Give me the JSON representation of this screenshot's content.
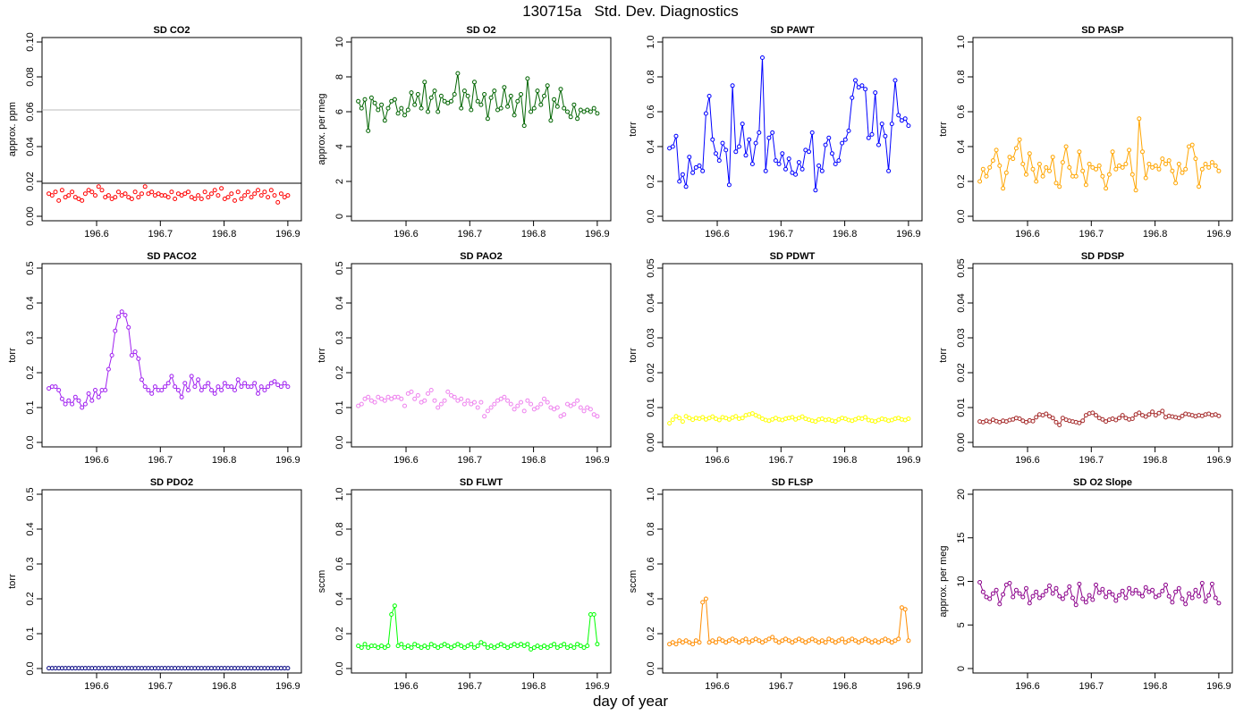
{
  "title": "130715a   Std. Dev. Diagnostics",
  "xlabel": "day of year",
  "colors": {
    "red": "#ff0000",
    "darkgreen": "#006400",
    "blue": "#0000ff",
    "orange": "#ffa500",
    "purple": "#a020f0",
    "violet": "#ee82ee",
    "yellow": "#ffff00",
    "brown": "#a52a2a",
    "navy": "#000080",
    "green": "#00ff00",
    "darkorange": "#ff8c00",
    "darkmagenta": "#8b008b"
  },
  "chart_data": [
    {
      "type": "scatter",
      "title": "SD CO2",
      "xlabel": "",
      "ylabel": "approx. ppm",
      "xlim": [
        196.52,
        196.91
      ],
      "ylim": [
        0,
        0.1
      ],
      "xticks": [
        "196.6",
        "196.7",
        "196.8",
        "196.9"
      ],
      "yticks": [
        "0.00",
        "0.02",
        "0.04",
        "0.06",
        "0.08",
        "0.10"
      ],
      "color": "#ff0000",
      "connected": false,
      "hlines": [
        {
          "y": 0.019,
          "color": "#000000"
        },
        {
          "y": 0.061,
          "color": "#bbbbbb"
        }
      ],
      "values": [
        0.013,
        0.012,
        0.014,
        0.009,
        0.015,
        0.011,
        0.012,
        0.014,
        0.011,
        0.01,
        0.009,
        0.013,
        0.015,
        0.014,
        0.012,
        0.017,
        0.015,
        0.011,
        0.012,
        0.01,
        0.011,
        0.014,
        0.012,
        0.013,
        0.011,
        0.01,
        0.014,
        0.011,
        0.013,
        0.017,
        0.013,
        0.014,
        0.012,
        0.013,
        0.012,
        0.012,
        0.011,
        0.014,
        0.01,
        0.013,
        0.012,
        0.013,
        0.014,
        0.011,
        0.01,
        0.012,
        0.01,
        0.014,
        0.011,
        0.013,
        0.015,
        0.012,
        0.016,
        0.01,
        0.011,
        0.013,
        0.009,
        0.014,
        0.01,
        0.012,
        0.014,
        0.011,
        0.013,
        0.015,
        0.012,
        0.014,
        0.011,
        0.015,
        0.012,
        0.008,
        0.013,
        0.011,
        0.012
      ]
    },
    {
      "type": "line",
      "title": "SD O2",
      "xlabel": "",
      "ylabel": "approx. per meg",
      "xlim": [
        196.52,
        196.91
      ],
      "ylim": [
        0,
        10
      ],
      "xticks": [
        "196.6",
        "196.7",
        "196.8",
        "196.9"
      ],
      "yticks": [
        "0",
        "2",
        "4",
        "6",
        "8",
        "10"
      ],
      "color": "#006400",
      "connected": true,
      "values": [
        6.6,
        6.2,
        6.7,
        4.9,
        6.8,
        6.5,
        6.1,
        6.4,
        5.5,
        6.2,
        6.6,
        6.7,
        5.9,
        6.2,
        5.8,
        6.1,
        7.1,
        6.4,
        7.0,
        6.2,
        7.7,
        6.0,
        6.8,
        7.2,
        6.0,
        6.9,
        6.6,
        6.5,
        6.6,
        7.0,
        8.2,
        6.2,
        7.2,
        6.9,
        6.1,
        7.7,
        6.6,
        6.4,
        7.0,
        5.6,
        6.8,
        7.2,
        6.1,
        6.2,
        7.4,
        6.3,
        6.9,
        5.8,
        6.6,
        7.0,
        5.2,
        7.9,
        6.0,
        6.2,
        7.2,
        6.4,
        6.9,
        7.5,
        5.5,
        6.7,
        6.3,
        7.3,
        6.2,
        6.0,
        5.7,
        6.4,
        5.6,
        6.1,
        6.0,
        6.1,
        6.0,
        6.2,
        5.9
      ]
    },
    {
      "type": "line",
      "title": "SD PAWT",
      "xlabel": "",
      "ylabel": "torr",
      "xlim": [
        196.52,
        196.91
      ],
      "ylim": [
        0,
        1
      ],
      "xticks": [
        "196.6",
        "196.7",
        "196.8",
        "196.9"
      ],
      "yticks": [
        "0.0",
        "0.2",
        "0.4",
        "0.6",
        "0.8",
        "1.0"
      ],
      "color": "#0000ff",
      "connected": true,
      "values": [
        0.39,
        0.4,
        0.46,
        0.2,
        0.24,
        0.17,
        0.34,
        0.25,
        0.28,
        0.29,
        0.26,
        0.59,
        0.69,
        0.44,
        0.36,
        0.32,
        0.42,
        0.38,
        0.18,
        0.75,
        0.37,
        0.4,
        0.53,
        0.35,
        0.44,
        0.3,
        0.42,
        0.48,
        0.91,
        0.26,
        0.45,
        0.48,
        0.32,
        0.3,
        0.36,
        0.27,
        0.33,
        0.25,
        0.24,
        0.31,
        0.27,
        0.38,
        0.37,
        0.48,
        0.15,
        0.29,
        0.26,
        0.41,
        0.45,
        0.36,
        0.3,
        0.32,
        0.42,
        0.44,
        0.49,
        0.68,
        0.78,
        0.74,
        0.75,
        0.73,
        0.45,
        0.47,
        0.71,
        0.41,
        0.53,
        0.46,
        0.26,
        0.53,
        0.78,
        0.58,
        0.55,
        0.56,
        0.52
      ]
    },
    {
      "type": "line",
      "title": "SD PASP",
      "xlabel": "",
      "ylabel": "torr",
      "xlim": [
        196.52,
        196.91
      ],
      "ylim": [
        0,
        1
      ],
      "xticks": [
        "196.6",
        "196.7",
        "196.8",
        "196.9"
      ],
      "yticks": [
        "0.0",
        "0.2",
        "0.4",
        "0.6",
        "0.8",
        "1.0"
      ],
      "color": "#ffa500",
      "connected": true,
      "values": [
        0.2,
        0.27,
        0.23,
        0.28,
        0.32,
        0.38,
        0.29,
        0.16,
        0.25,
        0.34,
        0.33,
        0.39,
        0.44,
        0.3,
        0.24,
        0.36,
        0.27,
        0.2,
        0.3,
        0.23,
        0.28,
        0.26,
        0.34,
        0.19,
        0.17,
        0.31,
        0.4,
        0.28,
        0.23,
        0.23,
        0.37,
        0.26,
        0.18,
        0.3,
        0.28,
        0.27,
        0.29,
        0.23,
        0.16,
        0.24,
        0.37,
        0.27,
        0.29,
        0.28,
        0.3,
        0.38,
        0.24,
        0.15,
        0.56,
        0.37,
        0.22,
        0.3,
        0.28,
        0.29,
        0.27,
        0.33,
        0.3,
        0.32,
        0.26,
        0.19,
        0.3,
        0.25,
        0.27,
        0.4,
        0.41,
        0.33,
        0.17,
        0.27,
        0.3,
        0.28,
        0.31,
        0.29,
        0.26
      ]
    },
    {
      "type": "line",
      "title": "SD PACO2",
      "xlabel": "",
      "ylabel": "torr",
      "xlim": [
        196.52,
        196.91
      ],
      "ylim": [
        0,
        0.5
      ],
      "xticks": [
        "196.6",
        "196.7",
        "196.8",
        "196.9"
      ],
      "yticks": [
        "0.0",
        "0.1",
        "0.2",
        "0.3",
        "0.4",
        "0.5"
      ],
      "color": "#a020f0",
      "connected": true,
      "values": [
        0.155,
        0.16,
        0.16,
        0.15,
        0.125,
        0.11,
        0.12,
        0.11,
        0.13,
        0.12,
        0.1,
        0.11,
        0.14,
        0.12,
        0.15,
        0.13,
        0.15,
        0.15,
        0.21,
        0.25,
        0.32,
        0.36,
        0.375,
        0.365,
        0.33,
        0.25,
        0.26,
        0.24,
        0.18,
        0.16,
        0.15,
        0.14,
        0.16,
        0.15,
        0.15,
        0.16,
        0.17,
        0.19,
        0.16,
        0.15,
        0.13,
        0.17,
        0.15,
        0.19,
        0.16,
        0.18,
        0.15,
        0.16,
        0.17,
        0.15,
        0.14,
        0.16,
        0.15,
        0.17,
        0.16,
        0.16,
        0.15,
        0.18,
        0.16,
        0.17,
        0.16,
        0.16,
        0.17,
        0.14,
        0.16,
        0.15,
        0.16,
        0.17,
        0.175,
        0.165,
        0.16,
        0.17,
        0.16
      ]
    },
    {
      "type": "scatter",
      "title": "SD PAO2",
      "xlabel": "",
      "ylabel": "torr",
      "xlim": [
        196.52,
        196.91
      ],
      "ylim": [
        0,
        0.5
      ],
      "xticks": [
        "196.6",
        "196.7",
        "196.8",
        "196.9"
      ],
      "yticks": [
        "0.0",
        "0.1",
        "0.2",
        "0.3",
        "0.4",
        "0.5"
      ],
      "color": "#ee82ee",
      "connected": false,
      "values": [
        0.105,
        0.11,
        0.125,
        0.13,
        0.12,
        0.115,
        0.13,
        0.125,
        0.12,
        0.13,
        0.125,
        0.13,
        0.13,
        0.125,
        0.105,
        0.14,
        0.145,
        0.125,
        0.135,
        0.115,
        0.12,
        0.14,
        0.15,
        0.12,
        0.1,
        0.11,
        0.12,
        0.145,
        0.135,
        0.13,
        0.12,
        0.125,
        0.11,
        0.12,
        0.11,
        0.115,
        0.1,
        0.115,
        0.075,
        0.09,
        0.1,
        0.11,
        0.12,
        0.125,
        0.13,
        0.12,
        0.11,
        0.095,
        0.105,
        0.115,
        0.09,
        0.12,
        0.11,
        0.095,
        0.1,
        0.11,
        0.125,
        0.115,
        0.1,
        0.095,
        0.1,
        0.075,
        0.08,
        0.11,
        0.105,
        0.11,
        0.12,
        0.1,
        0.09,
        0.1,
        0.095,
        0.08,
        0.075
      ]
    },
    {
      "type": "scatter",
      "title": "SD PDWT",
      "xlabel": "",
      "ylabel": "torr",
      "xlim": [
        196.52,
        196.91
      ],
      "ylim": [
        0,
        0.05
      ],
      "xticks": [
        "196.6",
        "196.7",
        "196.8",
        "196.9"
      ],
      "yticks": [
        "0.00",
        "0.01",
        "0.02",
        "0.03",
        "0.04",
        "0.05"
      ],
      "color": "#ffff00",
      "connected": false,
      "values": [
        0.0055,
        0.0065,
        0.0075,
        0.007,
        0.006,
        0.0075,
        0.007,
        0.0065,
        0.007,
        0.0068,
        0.0072,
        0.0066,
        0.007,
        0.0074,
        0.0068,
        0.0064,
        0.0072,
        0.007,
        0.0066,
        0.0071,
        0.0075,
        0.0068,
        0.007,
        0.0078,
        0.008,
        0.0083,
        0.0078,
        0.0074,
        0.0068,
        0.0064,
        0.0062,
        0.0066,
        0.007,
        0.0066,
        0.0064,
        0.0068,
        0.007,
        0.0072,
        0.0066,
        0.007,
        0.0074,
        0.0068,
        0.0065,
        0.0062,
        0.006,
        0.0066,
        0.0068,
        0.0064,
        0.0066,
        0.0062,
        0.006,
        0.0066,
        0.007,
        0.0068,
        0.0064,
        0.0062,
        0.0066,
        0.007,
        0.0068,
        0.0072,
        0.0064,
        0.0062,
        0.006,
        0.0064,
        0.0068,
        0.0066,
        0.0062,
        0.0064,
        0.0068,
        0.007,
        0.0066,
        0.0064,
        0.0068
      ]
    },
    {
      "type": "line",
      "title": "SD PDSP",
      "xlabel": "",
      "ylabel": "torr",
      "xlim": [
        196.52,
        196.91
      ],
      "ylim": [
        0,
        0.05
      ],
      "xticks": [
        "196.6",
        "196.7",
        "196.8",
        "196.9"
      ],
      "yticks": [
        "0.00",
        "0.01",
        "0.02",
        "0.03",
        "0.04",
        "0.05"
      ],
      "color": "#a52a2a",
      "connected": true,
      "values": [
        0.006,
        0.0058,
        0.0062,
        0.0059,
        0.0065,
        0.0061,
        0.0058,
        0.0062,
        0.006,
        0.0064,
        0.0066,
        0.007,
        0.0068,
        0.0062,
        0.0058,
        0.0063,
        0.0061,
        0.0072,
        0.008,
        0.0078,
        0.0082,
        0.0075,
        0.007,
        0.0058,
        0.005,
        0.007,
        0.0065,
        0.0062,
        0.006,
        0.0058,
        0.0056,
        0.0062,
        0.0078,
        0.0083,
        0.0085,
        0.0078,
        0.007,
        0.0066,
        0.006,
        0.0065,
        0.0068,
        0.0064,
        0.007,
        0.0078,
        0.007,
        0.0066,
        0.0068,
        0.008,
        0.0085,
        0.0078,
        0.0074,
        0.008,
        0.0088,
        0.0078,
        0.0084,
        0.009,
        0.0072,
        0.0076,
        0.0074,
        0.0072,
        0.007,
        0.0076,
        0.0082,
        0.008,
        0.0078,
        0.0075,
        0.0078,
        0.0076,
        0.008,
        0.0082,
        0.0078,
        0.008,
        0.0076
      ]
    },
    {
      "type": "line",
      "title": "SD PDO2",
      "xlabel": "",
      "ylabel": "torr",
      "xlim": [
        196.52,
        196.91
      ],
      "ylim": [
        0,
        0.5
      ],
      "xticks": [
        "196.6",
        "196.7",
        "196.8",
        "196.9"
      ],
      "yticks": [
        "0.0",
        "0.1",
        "0.2",
        "0.3",
        "0.4",
        "0.5"
      ],
      "color": "#000080",
      "connected": true,
      "values": [
        0.001,
        0.001,
        0.001,
        0.001,
        0.001,
        0.001,
        0.001,
        0.001,
        0.001,
        0.001,
        0.001,
        0.001,
        0.001,
        0.001,
        0.001,
        0.001,
        0.001,
        0.001,
        0.001,
        0.001,
        0.001,
        0.001,
        0.001,
        0.001,
        0.001,
        0.001,
        0.001,
        0.001,
        0.001,
        0.001,
        0.001,
        0.001,
        0.001,
        0.001,
        0.001,
        0.001,
        0.001,
        0.001,
        0.001,
        0.001,
        0.001,
        0.001,
        0.001,
        0.001,
        0.001,
        0.001,
        0.001,
        0.001,
        0.001,
        0.001,
        0.001,
        0.001,
        0.001,
        0.001,
        0.001,
        0.001,
        0.001,
        0.001,
        0.001,
        0.001,
        0.001,
        0.001,
        0.001,
        0.001,
        0.001,
        0.001,
        0.001,
        0.001,
        0.001,
        0.001,
        0.001,
        0.001,
        0.001
      ]
    },
    {
      "type": "line",
      "title": "SD FLWT",
      "xlabel": "",
      "ylabel": "sccm",
      "xlim": [
        196.52,
        196.91
      ],
      "ylim": [
        0,
        1
      ],
      "xticks": [
        "196.6",
        "196.7",
        "196.8",
        "196.9"
      ],
      "yticks": [
        "0.0",
        "0.2",
        "0.4",
        "0.6",
        "0.8",
        "1.0"
      ],
      "color": "#00ff00",
      "connected": true,
      "values": [
        0.13,
        0.12,
        0.14,
        0.12,
        0.13,
        0.13,
        0.12,
        0.13,
        0.12,
        0.13,
        0.31,
        0.36,
        0.13,
        0.14,
        0.12,
        0.13,
        0.12,
        0.14,
        0.13,
        0.12,
        0.13,
        0.12,
        0.14,
        0.13,
        0.12,
        0.13,
        0.14,
        0.13,
        0.12,
        0.13,
        0.14,
        0.13,
        0.12,
        0.13,
        0.14,
        0.12,
        0.13,
        0.15,
        0.14,
        0.12,
        0.13,
        0.12,
        0.13,
        0.14,
        0.13,
        0.12,
        0.13,
        0.14,
        0.13,
        0.14,
        0.13,
        0.14,
        0.11,
        0.12,
        0.13,
        0.12,
        0.13,
        0.12,
        0.13,
        0.14,
        0.12,
        0.13,
        0.14,
        0.12,
        0.13,
        0.12,
        0.14,
        0.13,
        0.12,
        0.13,
        0.31,
        0.31,
        0.14
      ]
    },
    {
      "type": "line",
      "title": "SD FLSP",
      "xlabel": "",
      "ylabel": "sccm",
      "xlim": [
        196.52,
        196.91
      ],
      "ylim": [
        0,
        1
      ],
      "xticks": [
        "196.6",
        "196.7",
        "196.8",
        "196.9"
      ],
      "yticks": [
        "0.0",
        "0.2",
        "0.4",
        "0.6",
        "0.8",
        "1.0"
      ],
      "color": "#ff8c00",
      "connected": true,
      "values": [
        0.14,
        0.15,
        0.14,
        0.16,
        0.15,
        0.16,
        0.15,
        0.14,
        0.16,
        0.15,
        0.38,
        0.4,
        0.15,
        0.16,
        0.15,
        0.17,
        0.16,
        0.15,
        0.16,
        0.17,
        0.16,
        0.15,
        0.16,
        0.17,
        0.15,
        0.16,
        0.17,
        0.16,
        0.15,
        0.16,
        0.17,
        0.18,
        0.16,
        0.15,
        0.16,
        0.17,
        0.16,
        0.15,
        0.16,
        0.17,
        0.16,
        0.15,
        0.16,
        0.17,
        0.16,
        0.15,
        0.16,
        0.15,
        0.17,
        0.16,
        0.15,
        0.16,
        0.17,
        0.15,
        0.16,
        0.17,
        0.16,
        0.15,
        0.16,
        0.17,
        0.16,
        0.15,
        0.16,
        0.15,
        0.16,
        0.17,
        0.16,
        0.15,
        0.16,
        0.17,
        0.35,
        0.34,
        0.16
      ]
    },
    {
      "type": "line",
      "title": "SD O2 Slope",
      "xlabel": "",
      "ylabel": "approx. per meg",
      "xlim": [
        196.52,
        196.91
      ],
      "ylim": [
        0,
        20
      ],
      "xticks": [
        "196.6",
        "196.7",
        "196.8",
        "196.9"
      ],
      "yticks": [
        "0",
        "5",
        "10",
        "15",
        "20"
      ],
      "color": "#8b008b",
      "connected": true,
      "values": [
        9.9,
        8.8,
        8.2,
        8.0,
        8.6,
        9.0,
        7.4,
        8.5,
        9.6,
        9.8,
        8.2,
        9.0,
        8.6,
        8.2,
        9.2,
        7.5,
        8.3,
        8.8,
        8.1,
        8.4,
        8.9,
        9.5,
        8.6,
        9.2,
        8.3,
        8.0,
        8.6,
        9.4,
        8.1,
        7.3,
        9.7,
        8.0,
        7.6,
        8.4,
        7.9,
        9.6,
        8.7,
        9.1,
        8.2,
        8.8,
        8.5,
        7.8,
        8.4,
        8.9,
        8.1,
        9.2,
        8.6,
        9.0,
        8.6,
        8.3,
        9.3,
        8.8,
        9.0,
        8.2,
        8.4,
        8.9,
        9.6,
        8.3,
        7.6,
        8.8,
        9.2,
        8.0,
        7.4,
        8.6,
        8.1,
        9.0,
        8.3,
        9.8,
        7.7,
        8.4,
        9.7,
        8.1,
        7.5
      ]
    }
  ]
}
